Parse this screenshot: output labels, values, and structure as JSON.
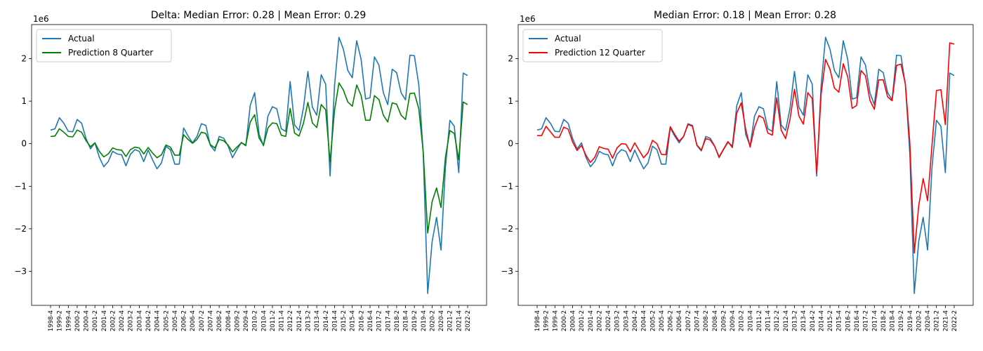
{
  "chart_data": [
    {
      "type": "line",
      "title": "Delta: Median Error: 0.28 | Mean Error: 0.29",
      "xlabel": "",
      "ylabel": "",
      "y_scale_label": "1e6",
      "ylim": [
        -3.8,
        2.8
      ],
      "yticks": [
        -3,
        -2,
        -1,
        0,
        1,
        2
      ],
      "grid": false,
      "legend_position": "top-left",
      "series": [
        {
          "name": "Actual",
          "color": "#1f77b4",
          "values": [
            0.32,
            0.35,
            0.61,
            0.48,
            0.29,
            0.28,
            0.57,
            0.48,
            0.12,
            -0.12,
            0.02,
            -0.32,
            -0.54,
            -0.42,
            -0.18,
            -0.24,
            -0.26,
            -0.52,
            -0.25,
            -0.14,
            -0.18,
            -0.42,
            -0.15,
            -0.38,
            -0.59,
            -0.45,
            -0.06,
            -0.14,
            -0.48,
            -0.48,
            0.37,
            0.18,
            0.02,
            0.17,
            0.47,
            0.43,
            -0.04,
            -0.17,
            0.17,
            0.13,
            -0.05,
            -0.33,
            -0.14,
            0.03,
            -0.05,
            0.9,
            1.2,
            0.22,
            -0.05,
            0.65,
            0.87,
            0.82,
            0.35,
            0.29,
            1.46,
            0.44,
            0.31,
            0.84,
            1.7,
            0.86,
            0.67,
            1.62,
            1.4,
            -0.76,
            1.36,
            2.5,
            2.22,
            1.72,
            1.55,
            2.42,
            1.98,
            1.05,
            1.08,
            2.04,
            1.85,
            1.2,
            0.92,
            1.75,
            1.67,
            1.2,
            1.03,
            2.08,
            2.07,
            1.38,
            -0.24,
            -3.52,
            -2.3,
            -1.73,
            -2.5,
            -0.55,
            0.55,
            0.41,
            -0.68,
            1.66,
            1.6
          ]
        },
        {
          "name": "Prediction 8 Quarter",
          "color": "#008000",
          "values": [
            0.17,
            0.18,
            0.35,
            0.27,
            0.17,
            0.16,
            0.32,
            0.27,
            0.07,
            -0.07,
            0.02,
            -0.18,
            -0.31,
            -0.24,
            -0.1,
            -0.14,
            -0.15,
            -0.3,
            -0.14,
            -0.08,
            -0.1,
            -0.24,
            -0.09,
            -0.22,
            -0.33,
            -0.26,
            -0.03,
            -0.08,
            -0.27,
            -0.27,
            0.21,
            0.1,
            0.01,
            0.1,
            0.27,
            0.24,
            -0.02,
            -0.1,
            0.1,
            0.07,
            -0.03,
            -0.19,
            -0.08,
            0.02,
            -0.03,
            0.51,
            0.68,
            0.13,
            -0.03,
            0.37,
            0.49,
            0.47,
            0.2,
            0.17,
            0.83,
            0.25,
            0.18,
            0.48,
            0.97,
            0.49,
            0.38,
            0.92,
            0.8,
            -0.43,
            0.78,
            1.43,
            1.26,
            0.98,
            0.88,
            1.38,
            1.13,
            0.55,
            0.55,
            1.13,
            1.04,
            0.67,
            0.51,
            0.96,
            0.93,
            0.67,
            0.57,
            1.18,
            1.19,
            0.82,
            -0.2,
            -2.1,
            -1.36,
            -1.04,
            -1.5,
            -0.32,
            0.31,
            0.24,
            -0.38,
            0.98,
            0.92
          ]
        }
      ]
    },
    {
      "type": "line",
      "title": "Median Error: 0.18 | Mean Error: 0.28",
      "xlabel": "",
      "ylabel": "",
      "y_scale_label": "1e6",
      "ylim": [
        -3.8,
        2.8
      ],
      "yticks": [
        -3,
        -2,
        -1,
        0,
        1,
        2
      ],
      "grid": false,
      "legend_position": "top-left",
      "series": [
        {
          "name": "Actual",
          "color": "#1f77b4",
          "values": [
            0.32,
            0.35,
            0.61,
            0.48,
            0.29,
            0.28,
            0.57,
            0.48,
            0.12,
            -0.12,
            0.02,
            -0.32,
            -0.54,
            -0.42,
            -0.18,
            -0.24,
            -0.26,
            -0.52,
            -0.25,
            -0.14,
            -0.18,
            -0.42,
            -0.15,
            -0.38,
            -0.59,
            -0.45,
            -0.06,
            -0.14,
            -0.48,
            -0.48,
            0.37,
            0.18,
            0.02,
            0.17,
            0.47,
            0.43,
            -0.04,
            -0.17,
            0.17,
            0.13,
            -0.05,
            -0.33,
            -0.14,
            0.03,
            -0.05,
            0.9,
            1.2,
            0.22,
            -0.05,
            0.65,
            0.87,
            0.82,
            0.35,
            0.29,
            1.46,
            0.44,
            0.31,
            0.84,
            1.7,
            0.86,
            0.67,
            1.62,
            1.4,
            -0.76,
            1.36,
            2.5,
            2.22,
            1.72,
            1.55,
            2.42,
            1.98,
            1.05,
            1.08,
            2.04,
            1.85,
            1.2,
            0.92,
            1.75,
            1.67,
            1.2,
            1.03,
            2.08,
            2.07,
            1.38,
            -0.24,
            -3.52,
            -2.3,
            -1.73,
            -2.5,
            -0.55,
            0.55,
            0.41,
            -0.68,
            1.66,
            1.6
          ]
        },
        {
          "name": "Prediction 12 Quarter",
          "color": "#ff0000",
          "values": [
            0.19,
            0.19,
            0.41,
            0.28,
            0.15,
            0.15,
            0.39,
            0.34,
            0.04,
            -0.16,
            -0.04,
            -0.27,
            -0.44,
            -0.32,
            -0.07,
            -0.11,
            -0.13,
            -0.34,
            -0.1,
            0.0,
            -0.01,
            -0.19,
            0.02,
            -0.16,
            -0.33,
            -0.21,
            0.08,
            0.0,
            -0.25,
            -0.26,
            0.4,
            0.22,
            0.06,
            0.17,
            0.45,
            0.41,
            -0.03,
            -0.15,
            0.12,
            0.09,
            -0.06,
            -0.31,
            -0.13,
            0.05,
            -0.09,
            0.72,
            0.96,
            0.34,
            -0.08,
            0.39,
            0.66,
            0.6,
            0.25,
            0.2,
            1.08,
            0.32,
            0.12,
            0.58,
            1.28,
            0.65,
            0.46,
            1.2,
            1.06,
            -0.69,
            1.16,
            1.98,
            1.75,
            1.31,
            1.21,
            1.88,
            1.57,
            0.83,
            0.9,
            1.72,
            1.6,
            1.02,
            0.81,
            1.5,
            1.5,
            1.1,
            1.01,
            1.84,
            1.87,
            1.4,
            0.01,
            -2.57,
            -1.46,
            -0.82,
            -1.34,
            -0.03,
            1.25,
            1.27,
            0.45,
            2.37,
            2.34
          ]
        }
      ]
    }
  ],
  "x_tick_labels": [
    "1998-4",
    "1999-2",
    "1999-4",
    "2000-2",
    "2000-4",
    "2001-2",
    "2001-4",
    "2002-2",
    "2002-4",
    "2003-2",
    "2003-4",
    "2004-2",
    "2004-4",
    "2005-2",
    "2005-4",
    "2006-2",
    "2006-4",
    "2007-2",
    "2007-4",
    "2008-2",
    "2008-4",
    "2009-2",
    "2009-4",
    "2010-2",
    "2010-4",
    "2011-2",
    "2011-4",
    "2012-2",
    "2012-4",
    "2013-2",
    "2013-4",
    "2014-2",
    "2014-4",
    "2015-2",
    "2015-4",
    "2016-2",
    "2016-4",
    "2017-2",
    "2017-4",
    "2018-2",
    "2018-4",
    "2019-2",
    "2019-4",
    "2020-2",
    "2020-4",
    "2021-2",
    "2021-4",
    "2022-2"
  ]
}
